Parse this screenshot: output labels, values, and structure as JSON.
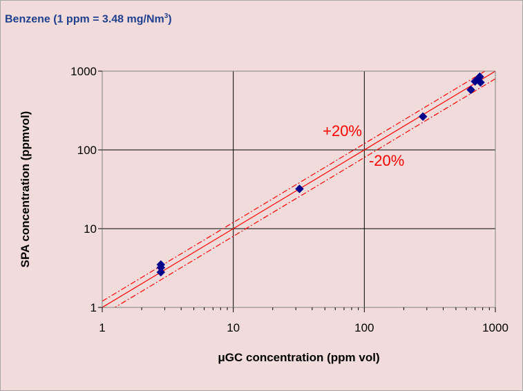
{
  "chart_data": {
    "type": "scatter",
    "title_main": "Benzene (1  ppm = 3.48 mg/Nm",
    "title_sup": "3",
    "title_end": ")",
    "xlabel": "μGC concentration (ppm vol)",
    "ylabel": "SPA concentration (ppmvol)",
    "x_scale": "log",
    "y_scale": "log",
    "xlim": [
      1,
      1000
    ],
    "ylim": [
      1,
      1000
    ],
    "x_ticks": [
      "1",
      "10",
      "100",
      "1000"
    ],
    "y_ticks": [
      "1",
      "10",
      "100",
      "1000"
    ],
    "grid": true,
    "marker_color": "#00008b",
    "line_color": "#ff0000",
    "points": [
      {
        "x": 2.8,
        "y": 3.5
      },
      {
        "x": 2.8,
        "y": 3.2
      },
      {
        "x": 2.8,
        "y": 2.8
      },
      {
        "x": 32,
        "y": 32
      },
      {
        "x": 280,
        "y": 265
      },
      {
        "x": 650,
        "y": 580
      },
      {
        "x": 700,
        "y": 740
      },
      {
        "x": 740,
        "y": 790
      },
      {
        "x": 760,
        "y": 850
      },
      {
        "x": 770,
        "y": 720
      }
    ],
    "reference_lines": [
      {
        "factor": 1.0,
        "style": "solid"
      },
      {
        "factor": 1.2,
        "style": "dashdot"
      },
      {
        "factor": 0.8,
        "style": "dashdot"
      }
    ],
    "annotations": [
      {
        "text": "+20%",
        "x": 68,
        "y": 150
      },
      {
        "text": "-20%",
        "x": 148,
        "y": 63
      }
    ]
  }
}
